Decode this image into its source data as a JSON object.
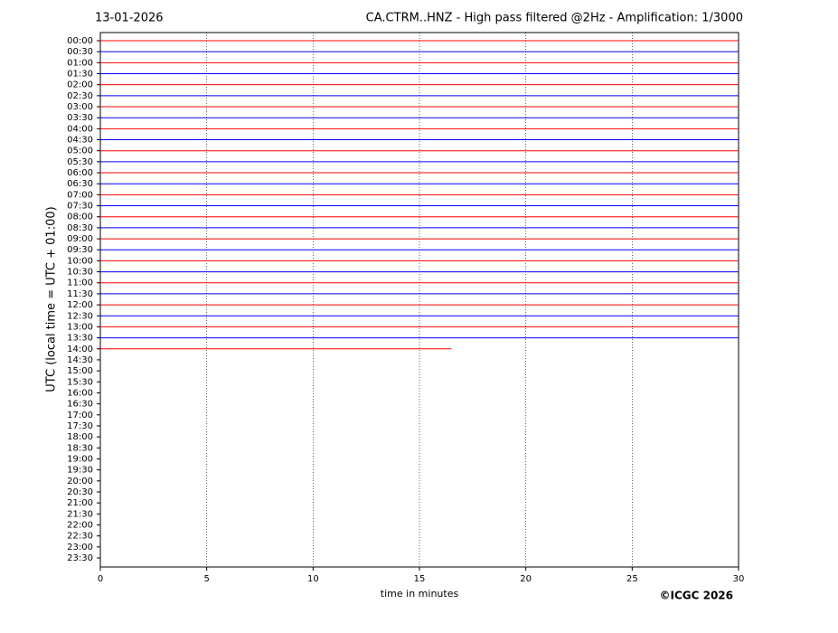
{
  "chart_data": {
    "type": "helicorder",
    "title": "13-01-2026",
    "subtitle": "CA.CTRM..HNZ - High pass filtered @2Hz - Amplification: 1/3000",
    "ylabel": "UTC (local time = UTC + 01:00)",
    "xlabel": "time in minutes",
    "credit": "©ICGC 2026",
    "categories": [
      "00:00",
      "00:30",
      "01:00",
      "01:30",
      "02:00",
      "02:30",
      "03:00",
      "03:30",
      "04:00",
      "04:30",
      "05:00",
      "05:30",
      "06:00",
      "06:30",
      "07:00",
      "07:30",
      "08:00",
      "08:30",
      "09:00",
      "09:30",
      "10:00",
      "10:30",
      "11:00",
      "11:30",
      "12:00",
      "12:30",
      "13:00",
      "13:30",
      "14:00",
      "14:30",
      "15:00",
      "15:30",
      "16:00",
      "16:30",
      "17:00",
      "17:30",
      "18:00",
      "18:30",
      "19:00",
      "19:30",
      "20:00",
      "20:30",
      "21:00",
      "21:30",
      "22:00",
      "22:30",
      "23:00",
      "23:30"
    ],
    "values": [
      30,
      30,
      30,
      30,
      30,
      30,
      30,
      30,
      30,
      30,
      30,
      30,
      30,
      30,
      30,
      30,
      30,
      30,
      30,
      30,
      30,
      30,
      30,
      30,
      30,
      30,
      30,
      30,
      16.5,
      null,
      null,
      null,
      null,
      null,
      null,
      null,
      null,
      null,
      null,
      null,
      null,
      null,
      null,
      null,
      null,
      null,
      null,
      null
    ],
    "colors": [
      "#ff0000",
      "#0000ff"
    ],
    "xlim": [
      0,
      30
    ],
    "xticks": [
      0,
      5,
      10,
      15,
      20,
      25,
      30
    ],
    "grid": true
  }
}
